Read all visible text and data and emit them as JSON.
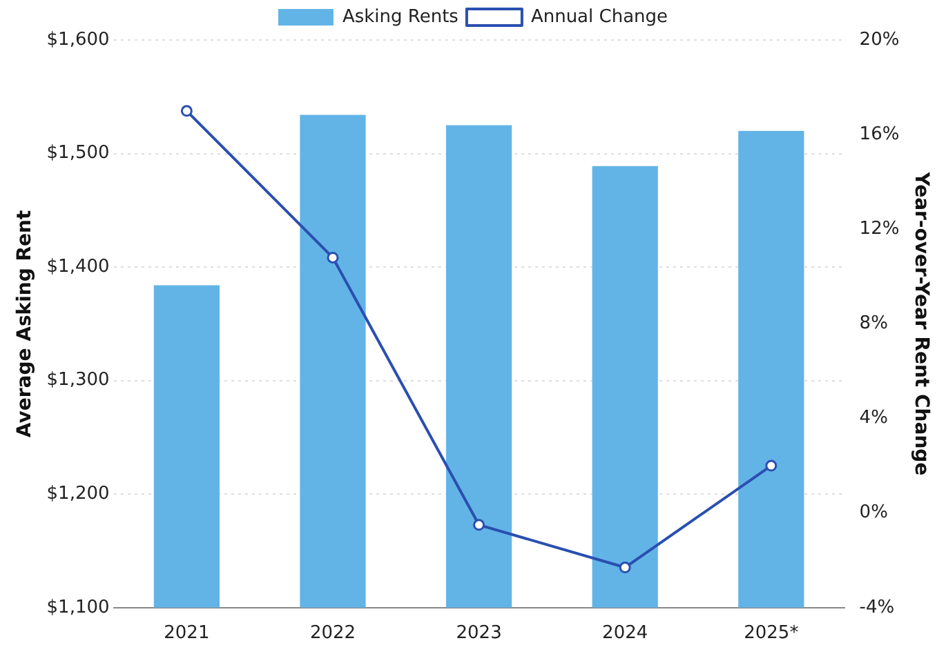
{
  "chart_data": {
    "type": "bar",
    "categories": [
      "2021",
      "2022",
      "2023",
      "2024",
      "2025*"
    ],
    "ylabel": "Average Asking Rent",
    "y2label": "Year-over-Year Rent Change",
    "series": [
      {
        "name": "Asking Rents",
        "color": "#62b4e6",
        "values": [
          1384,
          1534,
          1525,
          1489,
          1520
        ]
      },
      {
        "name": "Annual Change",
        "type": "line",
        "axis": "y2",
        "color": "#2a4fb0",
        "values": [
          17.0,
          10.8,
          -0.5,
          -2.3,
          2.0
        ]
      }
    ],
    "ylim": [
      1100,
      1600
    ],
    "yticks": [
      {
        "value": 1100,
        "label": "$1,100"
      },
      {
        "value": 1200,
        "label": "$1,200"
      },
      {
        "value": 1300,
        "label": "$1,300"
      },
      {
        "value": 1400,
        "label": "$1,400"
      },
      {
        "value": 1500,
        "label": "$1,500"
      },
      {
        "value": 1600,
        "label": "$1,600"
      }
    ],
    "y2lim": [
      -4,
      20
    ],
    "y2ticks": [
      {
        "value": -4,
        "label": "-4%"
      },
      {
        "value": 0,
        "label": "0%"
      },
      {
        "value": 4,
        "label": "4%"
      },
      {
        "value": 8,
        "label": "8%"
      },
      {
        "value": 12,
        "label": "12%"
      },
      {
        "value": 16,
        "label": "16%"
      },
      {
        "value": 20,
        "label": "20%"
      }
    ],
    "grid": "y",
    "legend": "top",
    "marker": "circle",
    "line_style": "solid"
  }
}
